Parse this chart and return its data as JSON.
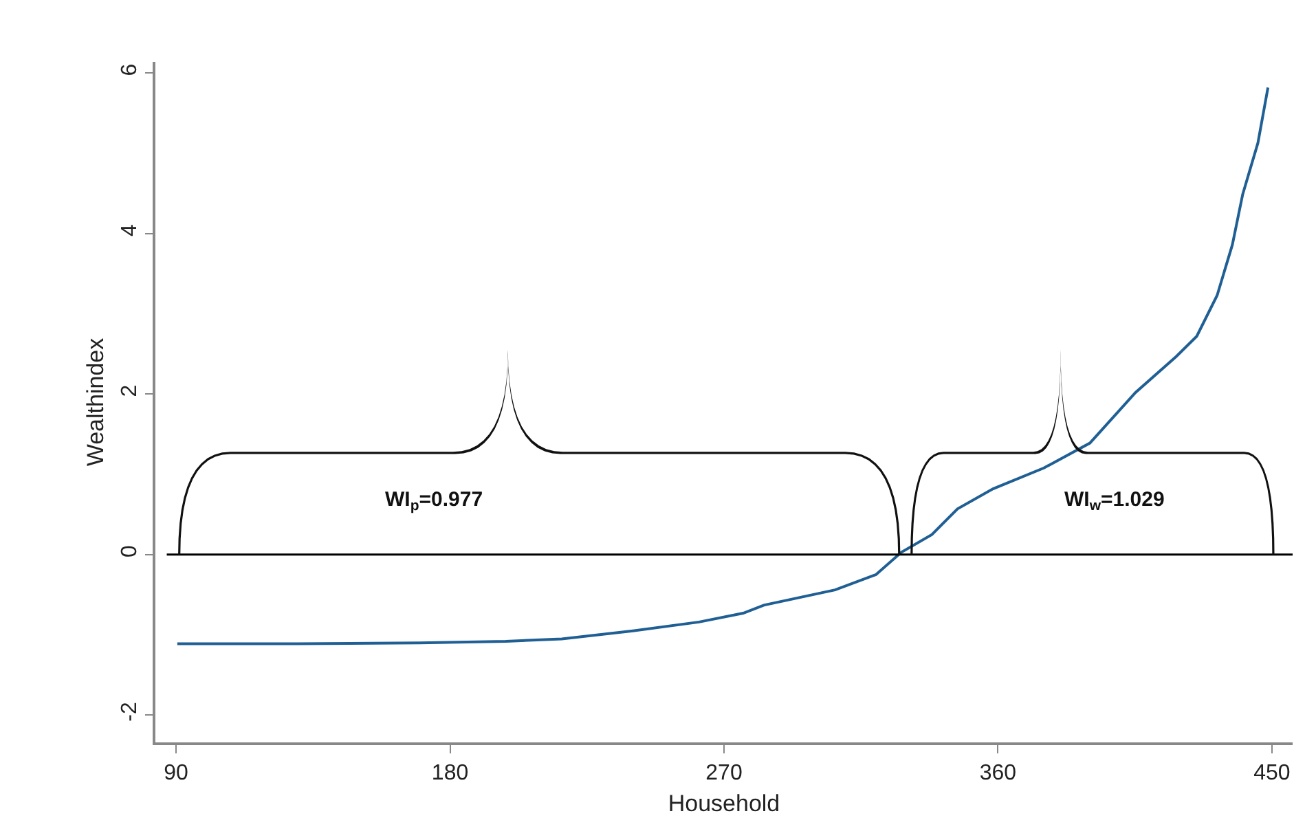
{
  "chart_data": {
    "type": "line",
    "xlabel": "Household",
    "ylabel": "Wealthindex",
    "x": [
      90.4,
      130,
      170,
      198.3,
      216.7,
      240.1,
      261.8,
      276.3,
      283.1,
      306.5,
      319.9,
      328.3,
      338.3,
      346.7,
      358.4,
      375.1,
      390.2,
      405.2,
      418.6,
      425.3,
      432,
      437,
      440.4,
      445.4,
      448.7
    ],
    "series": [
      {
        "color": "#1f5f94",
        "values": [
          -1.11,
          -1.11,
          -1.1,
          -1.08,
          -1.05,
          -0.95,
          -0.84,
          -0.73,
          -0.63,
          -0.44,
          -0.25,
          0.03,
          0.25,
          0.57,
          0.82,
          1.08,
          1.39,
          2.02,
          2.47,
          2.72,
          3.23,
          3.86,
          4.49,
          5.13,
          5.82
        ]
      }
    ],
    "xlim": [
      83.2,
      456.8
    ],
    "ylim": [
      -2.34,
      6.14
    ],
    "xticks": [
      90,
      180,
      270,
      360,
      450
    ],
    "yticks": [
      -2,
      0,
      2,
      4,
      6
    ],
    "ref_lines": [
      {
        "axis": "y",
        "value": 0,
        "color": "#000000"
      }
    ],
    "annotations": [
      "WI$_{p}$=0.977",
      "WI$_{w}$=1.029"
    ],
    "grid": false,
    "marker": "none",
    "line_style": "solid"
  }
}
